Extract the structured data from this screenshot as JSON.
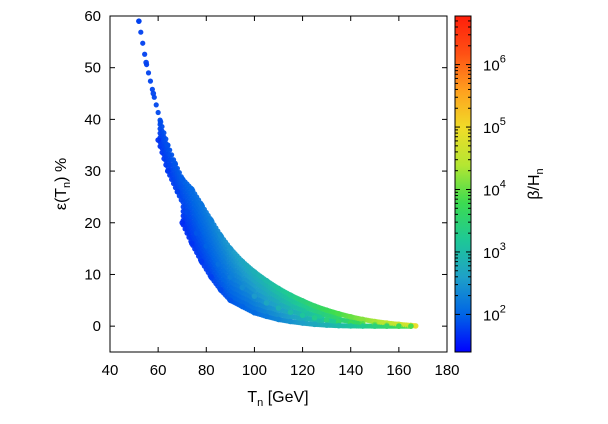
{
  "chart_data": {
    "type": "scatter",
    "title": "",
    "xlabel": "T",
    "xlabel_sub": "n",
    "xlabel_suffix": " [GeV]",
    "ylabel_prefix": "ε(T",
    "ylabel_sub": "n",
    "ylabel_suffix": ") %",
    "xlim": [
      40,
      180
    ],
    "ylim": [
      -5,
      60
    ],
    "x_ticks": [
      40,
      60,
      80,
      100,
      120,
      140,
      160,
      180
    ],
    "y_ticks": [
      0,
      10,
      20,
      30,
      40,
      50,
      60
    ],
    "grid": false,
    "colorbar": {
      "label_prefix": "β/H",
      "label_sub": "n",
      "scale": "log",
      "range": [
        25,
        6000000
      ],
      "ticks": [
        {
          "base": "10",
          "exp": "2",
          "value": 100
        },
        {
          "base": "10",
          "exp": "3",
          "value": 1000
        },
        {
          "base": "10",
          "exp": "4",
          "value": 10000
        },
        {
          "base": "10",
          "exp": "5",
          "value": 100000
        },
        {
          "base": "10",
          "exp": "6",
          "value": 1000000
        }
      ],
      "colormap": [
        "#0000ff",
        "#0064e6",
        "#1ea0c8",
        "#1ec896",
        "#3cdc50",
        "#b4e632",
        "#f0dc28",
        "#ffa01e",
        "#ff5014",
        "#ff1e0a"
      ]
    },
    "series": [
      {
        "description_points": "upper boundary of the scatter cloud",
        "x": [
          52,
          55,
          58,
          61,
          64,
          67,
          70,
          74,
          78,
          82,
          86,
          90,
          95,
          100,
          105,
          110,
          115,
          120,
          125,
          130,
          135,
          140,
          145,
          150,
          155,
          160,
          165,
          167
        ],
        "y": [
          59,
          51,
          45,
          39.5,
          35,
          31.5,
          28.5,
          26.5,
          23.5,
          20.5,
          17.5,
          15,
          12.5,
          10.5,
          8.8,
          7.3,
          6,
          4.9,
          3.9,
          3.1,
          2.4,
          1.8,
          1.3,
          0.9,
          0.6,
          0.35,
          0.15,
          0.05
        ],
        "z": [
          60,
          60,
          65,
          70,
          75,
          80,
          90,
          110,
          140,
          180,
          240,
          320,
          450,
          650,
          900,
          1300,
          1800,
          2500,
          3500,
          5000,
          7000,
          10000,
          14000,
          20000,
          28000,
          40000,
          60000,
          80000
        ]
      },
      {
        "x": [
          60,
          64,
          68,
          72,
          76,
          80,
          85,
          90,
          95,
          100,
          105,
          110,
          115,
          120,
          125,
          130,
          135,
          140,
          145,
          150,
          155,
          160,
          165
        ],
        "y": [
          36,
          30,
          26,
          22,
          18,
          15.5,
          12,
          9.5,
          7.5,
          5.8,
          4.5,
          3.5,
          2.7,
          2.1,
          1.6,
          1.2,
          0.9,
          0.65,
          0.45,
          0.3,
          0.18,
          0.08,
          0.02
        ],
        "z": [
          50,
          55,
          60,
          70,
          80,
          100,
          130,
          180,
          250,
          350,
          500,
          700,
          1000,
          1400,
          2000,
          2800,
          4000,
          5500,
          7500,
          10000,
          14000,
          19000,
          26000
        ]
      },
      {
        "description_points": "lower boundary of the scatter cloud",
        "x": [
          70,
          74,
          78,
          82,
          86,
          90,
          95,
          100,
          105,
          110,
          115,
          120,
          125,
          130,
          135,
          140,
          145,
          150,
          155,
          160,
          165
        ],
        "y": [
          20,
          16,
          12.5,
          9.5,
          7,
          5,
          3.8,
          2.6,
          1.9,
          1.3,
          0.9,
          0.6,
          0.35,
          0.2,
          0.1,
          0.05,
          0.02,
          0.01,
          0,
          0,
          0
        ],
        "z": [
          45,
          50,
          55,
          60,
          70,
          80,
          100,
          120,
          160,
          210,
          280,
          380,
          520,
          700,
          950,
          1300,
          1800,
          2500,
          3500,
          5000,
          7000
        ]
      }
    ]
  }
}
